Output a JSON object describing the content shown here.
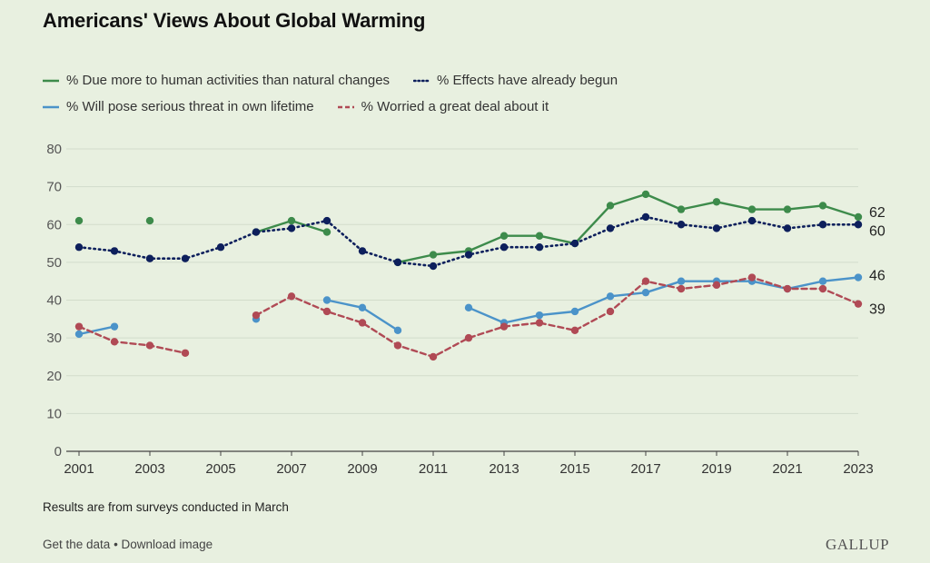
{
  "chart_data": {
    "type": "line",
    "title": "Americans' Views About Global Warming",
    "ylim": [
      0,
      80
    ],
    "yticks": [
      0,
      10,
      20,
      30,
      40,
      50,
      60,
      70,
      80
    ],
    "xlim": [
      2001,
      2023
    ],
    "xticks": [
      "2001",
      "2003",
      "2005",
      "2007",
      "2009",
      "2011",
      "2013",
      "2015",
      "2017",
      "2019",
      "2021",
      "2023"
    ],
    "grid": true,
    "legend_position": "top",
    "series": [
      {
        "name": "% Due more to human activities than natural changes",
        "color": "#3d8b4b",
        "style": "solid",
        "end_label": "62",
        "points": [
          [
            2001,
            61
          ],
          [
            2003,
            61
          ],
          [
            2006,
            58
          ],
          [
            2007,
            61
          ],
          [
            2008,
            58
          ],
          [
            2010,
            50
          ],
          [
            2011,
            52
          ],
          [
            2012,
            53
          ],
          [
            2013,
            57
          ],
          [
            2014,
            57
          ],
          [
            2015,
            55
          ],
          [
            2016,
            65
          ],
          [
            2017,
            68
          ],
          [
            2018,
            64
          ],
          [
            2019,
            66
          ],
          [
            2020,
            64
          ],
          [
            2021,
            64
          ],
          [
            2022,
            65
          ],
          [
            2023,
            62
          ]
        ]
      },
      {
        "name": "% Effects have already begun",
        "color": "#0d1f5c",
        "style": "dotted",
        "end_label": "60",
        "points": [
          [
            2001,
            54
          ],
          [
            2002,
            53
          ],
          [
            2003,
            51
          ],
          [
            2004,
            51
          ],
          [
            2005,
            54
          ],
          [
            2006,
            58
          ],
          [
            2007,
            59
          ],
          [
            2008,
            61
          ],
          [
            2009,
            53
          ],
          [
            2010,
            50
          ],
          [
            2011,
            49
          ],
          [
            2012,
            52
          ],
          [
            2013,
            54
          ],
          [
            2014,
            54
          ],
          [
            2015,
            55
          ],
          [
            2016,
            59
          ],
          [
            2017,
            62
          ],
          [
            2018,
            60
          ],
          [
            2019,
            59
          ],
          [
            2020,
            61
          ],
          [
            2021,
            59
          ],
          [
            2022,
            60
          ],
          [
            2023,
            60
          ]
        ]
      },
      {
        "name": "% Will pose serious threat in own lifetime",
        "color": "#4b93c9",
        "style": "solid",
        "end_label": "46",
        "points": [
          [
            2001,
            31
          ],
          [
            2002,
            33
          ],
          [
            2006,
            35
          ],
          [
            2008,
            40
          ],
          [
            2009,
            38
          ],
          [
            2010,
            32
          ],
          [
            2012,
            38
          ],
          [
            2013,
            34
          ],
          [
            2014,
            36
          ],
          [
            2015,
            37
          ],
          [
            2016,
            41
          ],
          [
            2017,
            42
          ],
          [
            2018,
            45
          ],
          [
            2019,
            45
          ],
          [
            2020,
            45
          ],
          [
            2021,
            43
          ],
          [
            2022,
            45
          ],
          [
            2023,
            46
          ]
        ]
      },
      {
        "name": "% Worried a great deal about it",
        "color": "#b04a55",
        "style": "dashed",
        "end_label": "39",
        "points": [
          [
            2001,
            33
          ],
          [
            2002,
            29
          ],
          [
            2003,
            28
          ],
          [
            2004,
            26
          ],
          [
            2006,
            36
          ],
          [
            2007,
            41
          ],
          [
            2008,
            37
          ],
          [
            2009,
            34
          ],
          [
            2010,
            28
          ],
          [
            2011,
            25
          ],
          [
            2012,
            30
          ],
          [
            2013,
            33
          ],
          [
            2014,
            34
          ],
          [
            2015,
            32
          ],
          [
            2016,
            37
          ],
          [
            2017,
            45
          ],
          [
            2018,
            43
          ],
          [
            2019,
            44
          ],
          [
            2020,
            46
          ],
          [
            2021,
            43
          ],
          [
            2022,
            43
          ],
          [
            2023,
            39
          ]
        ]
      }
    ]
  },
  "footnote": "Results are from surveys conducted in March",
  "links": {
    "get_data": "Get the data",
    "separator": " • ",
    "download": "Download image"
  },
  "logo": "GALLUP"
}
